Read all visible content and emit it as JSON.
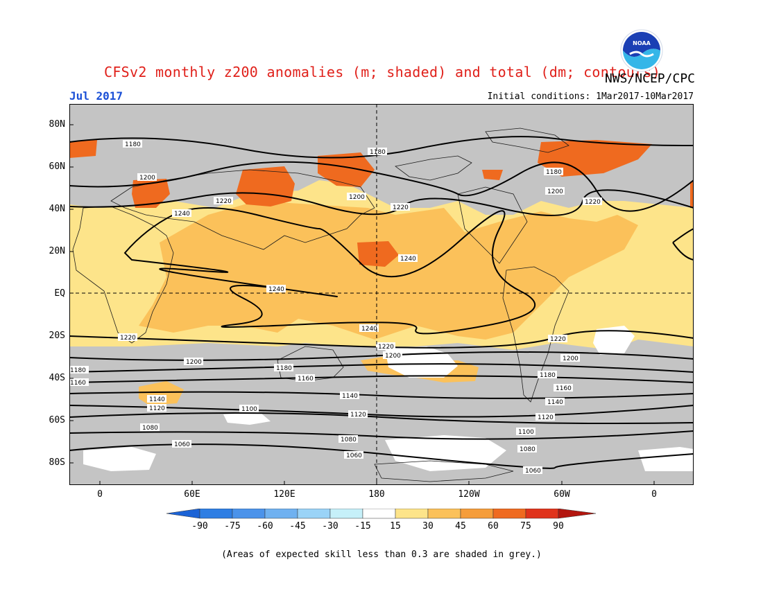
{
  "title": "CFSv2 monthly z200 anomalies (m; shaded) and total (dm; contours)",
  "agency": "NWS/NCEP/CPC",
  "logo_text": "NOAA",
  "month_label": "Jul 2017",
  "initial_conditions": "Initial conditions: 1Mar2017-10Mar2017",
  "lat_labels": [
    "80N",
    "60N",
    "40N",
    "20N",
    "EQ",
    "20S",
    "40S",
    "60S",
    "80S"
  ],
  "lon_labels": [
    "0",
    "60E",
    "120E",
    "180",
    "120W",
    "60W",
    "0"
  ],
  "colorbar": {
    "ticks": [
      "-90",
      "-75",
      "-60",
      "-45",
      "-30",
      "-15",
      "15",
      "30",
      "45",
      "60",
      "75",
      "90"
    ],
    "colors": [
      "#1b63d6",
      "#2e7ee3",
      "#4b93ea",
      "#6fb1f0",
      "#9ad3f7",
      "#c6f0f9",
      "#ffffff",
      "#fde48a",
      "#fbc15a",
      "#f59d3a",
      "#ef6a1f",
      "#e0331b",
      "#b3160f"
    ]
  },
  "contours": [
    {
      "value": "1060"
    },
    {
      "value": "1080"
    },
    {
      "value": "1100"
    },
    {
      "value": "1120"
    },
    {
      "value": "1140"
    },
    {
      "value": "1160"
    },
    {
      "value": "1180"
    },
    {
      "value": "1200"
    },
    {
      "value": "1220"
    },
    {
      "value": "1240"
    }
  ],
  "footnote": "(Areas of expected skill less than 0.3 are shaded in grey.)"
}
